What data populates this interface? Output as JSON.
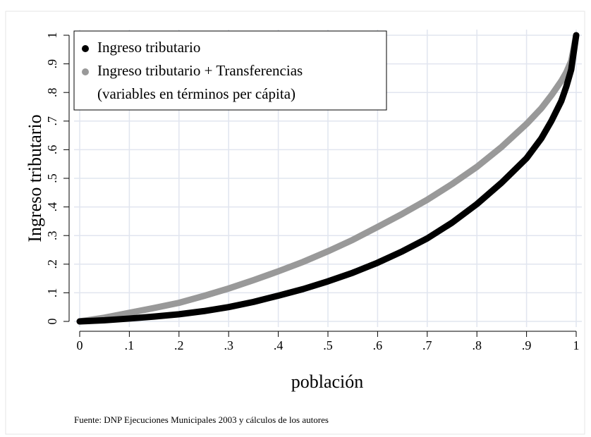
{
  "chart_data": {
    "type": "line",
    "x_label": "población",
    "y_label": "Ingreso tributario",
    "source": "Fuente: DNP Ejecuciones Municipales 2003 y cálculos de los autores",
    "legend_note": "(variables en términos per cápita)",
    "legend_position": "upper left",
    "grid": true,
    "x": [
      0,
      0.05,
      0.1,
      0.15,
      0.2,
      0.25,
      0.3,
      0.35,
      0.4,
      0.45,
      0.5,
      0.55,
      0.6,
      0.65,
      0.7,
      0.75,
      0.8,
      0.85,
      0.9,
      0.93,
      0.95,
      0.97,
      0.98,
      0.99,
      1
    ],
    "series": [
      {
        "name": "Ingreso tributario",
        "color": "#000000",
        "values": [
          0,
          0.004,
          0.01,
          0.017,
          0.025,
          0.036,
          0.05,
          0.068,
          0.09,
          0.113,
          0.14,
          0.17,
          0.205,
          0.245,
          0.29,
          0.345,
          0.41,
          0.485,
          0.57,
          0.64,
          0.7,
          0.77,
          0.82,
          0.88,
          1
        ]
      },
      {
        "name": "Ingreso tributario + Transferencias",
        "color": "#999999",
        "values": [
          0,
          0.013,
          0.03,
          0.047,
          0.065,
          0.089,
          0.115,
          0.144,
          0.175,
          0.208,
          0.245,
          0.285,
          0.33,
          0.376,
          0.425,
          0.48,
          0.54,
          0.61,
          0.69,
          0.745,
          0.79,
          0.84,
          0.87,
          0.91,
          1
        ]
      }
    ],
    "xlim": [
      0,
      1
    ],
    "ylim": [
      0,
      1
    ],
    "xticks": [
      0,
      {
        "value": 0.1,
        "label": ".1"
      },
      {
        "value": 0.2,
        "label": ".2"
      },
      {
        "value": 0.3,
        "label": ".3"
      },
      {
        "value": 0.4,
        "label": ".4"
      },
      {
        "value": 0.5,
        "label": ".5"
      },
      {
        "value": 0.6,
        "label": ".6"
      },
      {
        "value": 0.7,
        "label": ".7"
      },
      {
        "value": 0.8,
        "label": ".8"
      },
      {
        "value": 0.9,
        "label": ".9"
      },
      1
    ],
    "yticks": [
      0,
      {
        "value": 0.1,
        "label": ".1"
      },
      {
        "value": 0.2,
        "label": ".2"
      },
      {
        "value": 0.3,
        "label": ".3"
      },
      {
        "value": 0.4,
        "label": ".4"
      },
      {
        "value": 0.5,
        "label": ".5"
      },
      {
        "value": 0.6,
        "label": ".6"
      },
      {
        "value": 0.7,
        "label": ".7"
      },
      {
        "value": 0.8,
        "label": ".8"
      },
      {
        "value": 0.9,
        "label": ".9"
      },
      1
    ]
  }
}
